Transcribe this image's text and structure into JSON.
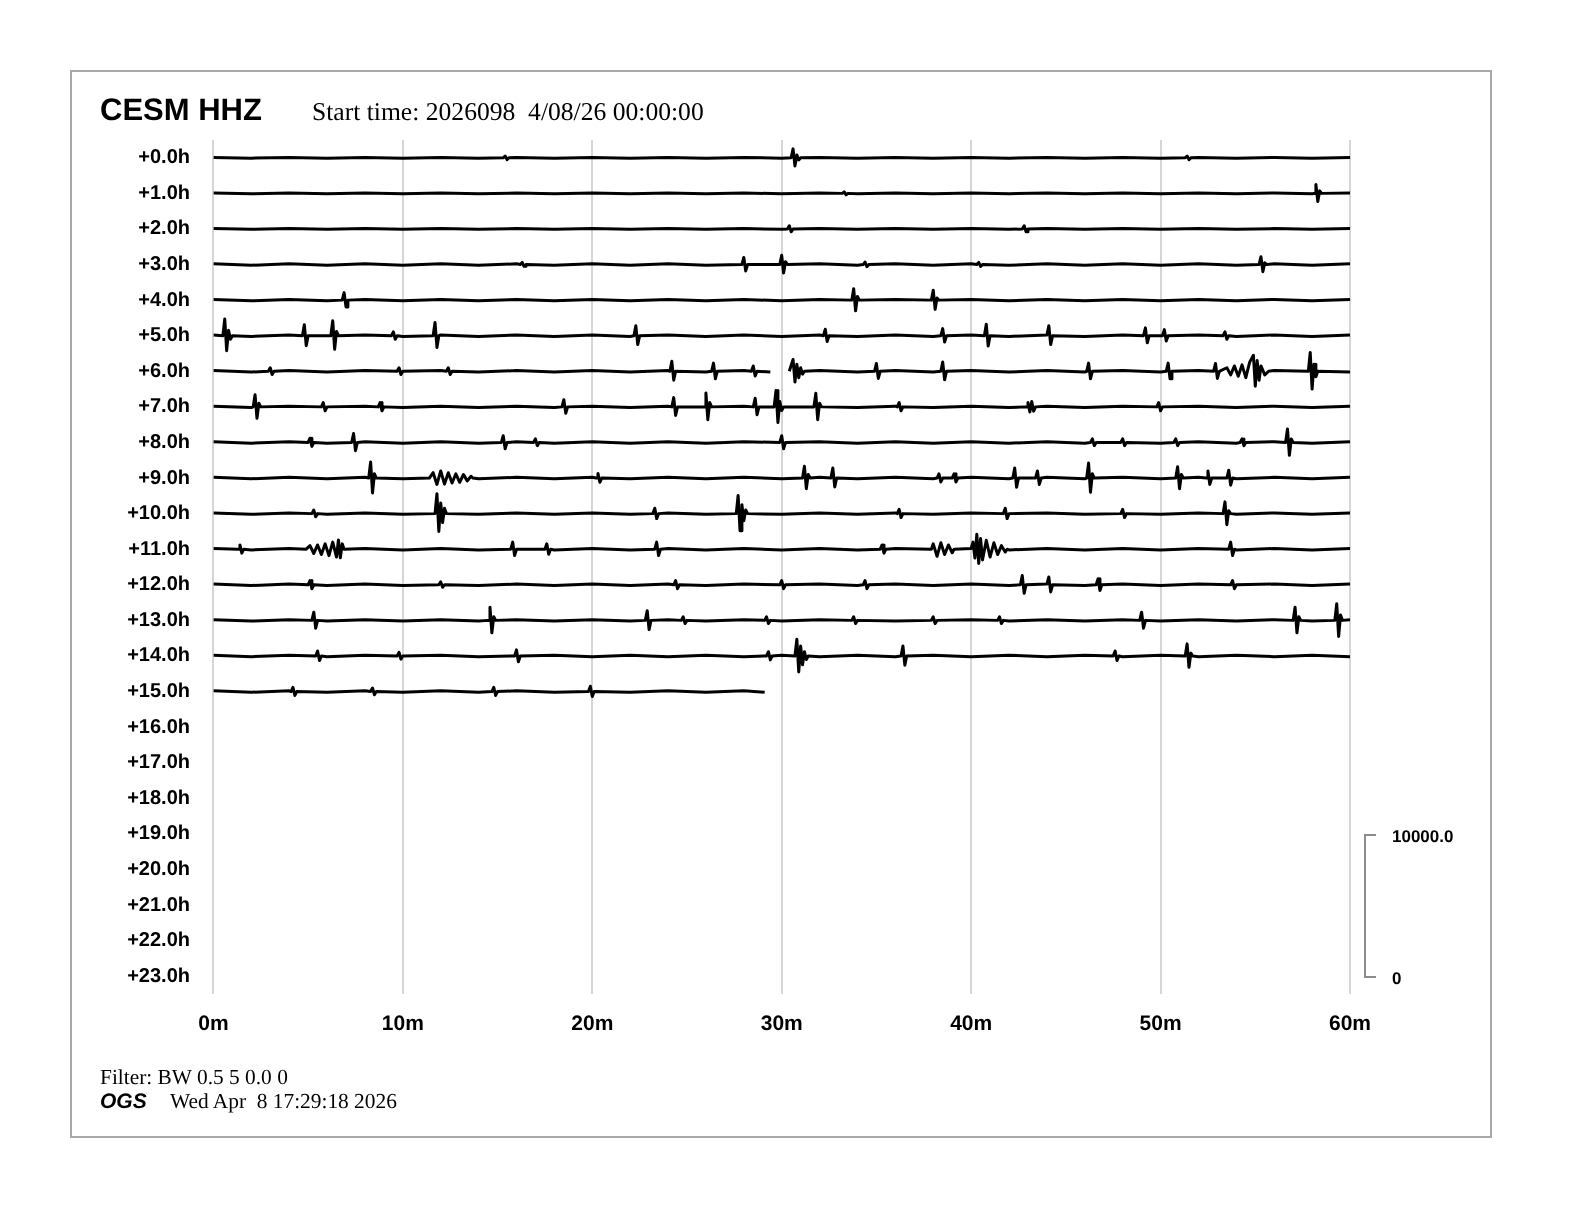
{
  "chart_data": {
    "type": "line",
    "title": "CESM HHZ",
    "subtitle": "Start time: 2026098  4/08/26 00:00:00",
    "annotations": [
      "Filter: BW 0.5 5 0.0 0",
      "OGS",
      "Wed Apr  8 17:29:18 2026",
      "10000.0",
      "0"
    ],
    "grid": "x",
    "xlim": [
      0,
      60
    ],
    "xticks": [
      {
        "value": 0,
        "label": "0m"
      },
      {
        "value": 10,
        "label": "10m"
      },
      {
        "value": 20,
        "label": "20m"
      },
      {
        "value": 30,
        "label": "30m"
      },
      {
        "value": 40,
        "label": "40m"
      },
      {
        "value": 50,
        "label": "50m"
      },
      {
        "value": 60,
        "label": "60m"
      }
    ],
    "ylim": [
      23.5,
      -0.5
    ],
    "yticks": [
      {
        "value": 0,
        "label": "+0.0h"
      },
      {
        "value": 1,
        "label": "+1.0h"
      },
      {
        "value": 2,
        "label": "+2.0h"
      },
      {
        "value": 3,
        "label": "+3.0h"
      },
      {
        "value": 4,
        "label": "+4.0h"
      },
      {
        "value": 5,
        "label": "+5.0h"
      },
      {
        "value": 6,
        "label": "+6.0h"
      },
      {
        "value": 7,
        "label": "+7.0h"
      },
      {
        "value": 8,
        "label": "+8.0h"
      },
      {
        "value": 9,
        "label": "+9.0h"
      },
      {
        "value": 10,
        "label": "+10.0h"
      },
      {
        "value": 11,
        "label": "+11.0h"
      },
      {
        "value": 12,
        "label": "+12.0h"
      },
      {
        "value": 13,
        "label": "+13.0h"
      },
      {
        "value": 14,
        "label": "+14.0h"
      },
      {
        "value": 15,
        "label": "+15.0h"
      },
      {
        "value": 16,
        "label": "+16.0h"
      },
      {
        "value": 17,
        "label": "+17.0h"
      },
      {
        "value": 18,
        "label": "+18.0h"
      },
      {
        "value": 19,
        "label": "+19.0h"
      },
      {
        "value": 20,
        "label": "+20.0h"
      },
      {
        "value": 21,
        "label": "+21.0h"
      },
      {
        "value": 22,
        "label": "+22.0h"
      },
      {
        "value": 23,
        "label": "+23.0h"
      }
    ],
    "series": [
      {
        "color": "#000000",
        "x": [
          0,
          2,
          4,
          6,
          8,
          10,
          12,
          14,
          15.3,
          15.4,
          15.5,
          15.6,
          16,
          18,
          20,
          22,
          24,
          26,
          28,
          30,
          30.5,
          30.6,
          30.7,
          30.8,
          30.9,
          31,
          32,
          34,
          36,
          38,
          40,
          42,
          44,
          46,
          48,
          50,
          51.3,
          51.4,
          51.5,
          51.6,
          52,
          54,
          56,
          58,
          60
        ],
        "values": [
          -0.01,
          0.01,
          -0.01,
          0.01,
          -0.01,
          0.01,
          -0.01,
          0.01,
          0,
          -0.05,
          0.05,
          0,
          -0.01,
          0.01,
          -0.01,
          0.01,
          -0.01,
          0.01,
          -0.01,
          0.01,
          0,
          -0.25,
          0.23,
          -0.08,
          0.06,
          0,
          -0.01,
          0.01,
          -0.01,
          0.01,
          -0.01,
          0.01,
          -0.01,
          0.01,
          -0.01,
          0.01,
          0,
          -0.05,
          0.05,
          0,
          -0.01,
          0.01,
          -0.01,
          0.01,
          -0.01
        ]
      },
      {
        "color": "#000000",
        "x": [
          0,
          2,
          4,
          6,
          8,
          10,
          12,
          14,
          16,
          18,
          20,
          22,
          24,
          26,
          28,
          30,
          32,
          33.2,
          33.3,
          33.4,
          33.5,
          34,
          36,
          38,
          40,
          42,
          44,
          46,
          48,
          50,
          52,
          54,
          56,
          58,
          58.1,
          58.2,
          58.3,
          58.4,
          58.5,
          60
        ],
        "values": [
          0.99,
          1.01,
          0.99,
          1.01,
          0.99,
          1.01,
          0.99,
          1.01,
          0.99,
          1.01,
          0.99,
          1.01,
          0.99,
          1.01,
          0.99,
          1.01,
          0.99,
          1,
          0.96,
          1.04,
          1,
          1.01,
          0.99,
          1.01,
          0.99,
          1.01,
          0.99,
          1.01,
          0.99,
          1.01,
          0.99,
          1.01,
          0.99,
          1.01,
          1,
          0.75,
          1.23,
          0.93,
          1,
          0.99
        ]
      },
      {
        "color": "#000000",
        "x": [
          0,
          2,
          4,
          6,
          8,
          10,
          12,
          14,
          16,
          18,
          20,
          22,
          24,
          26,
          28,
          30,
          30.3,
          30.4,
          30.5,
          30.6,
          32,
          34,
          36,
          38,
          40,
          42,
          42.7,
          42.8,
          42.9,
          43,
          44,
          46,
          48,
          50,
          52,
          54,
          56,
          58,
          60
        ],
        "values": [
          1.99,
          2.01,
          1.99,
          2.01,
          1.99,
          2.01,
          1.99,
          2.01,
          1.99,
          2.01,
          1.99,
          2.01,
          1.99,
          2.01,
          1.99,
          2.01,
          2,
          1.91,
          2.08,
          2,
          1.99,
          2.01,
          1.99,
          2.01,
          1.99,
          2.01,
          2,
          1.91,
          2.08,
          2,
          1.99,
          2.01,
          1.99,
          2.01,
          1.99,
          2.01,
          1.99,
          2.01,
          1.99
        ]
      },
      {
        "color": "#000000",
        "x": [
          0,
          2,
          4,
          6,
          8,
          10,
          12,
          14,
          16,
          16.2,
          16.3,
          16.4,
          16.5,
          18,
          20,
          22,
          24,
          26,
          27.9,
          28,
          28.1,
          28.2,
          29.9,
          30,
          30.1,
          30.2,
          30.3,
          32,
          34,
          34.3,
          34.4,
          34.5,
          34.6,
          36,
          38,
          40,
          40.3,
          40.4,
          40.5,
          40.6,
          42,
          44,
          46,
          48,
          50,
          52,
          54,
          55.2,
          55.3,
          55.4,
          55.5,
          55.6,
          56,
          58,
          60
        ],
        "values": [
          2.98,
          3.02,
          2.98,
          3.02,
          2.98,
          3.02,
          2.98,
          3.02,
          2.98,
          3,
          2.94,
          3.05,
          3,
          3.02,
          2.98,
          3.02,
          2.98,
          3.02,
          3,
          2.8,
          3.18,
          3,
          3,
          2.74,
          3.24,
          2.92,
          3,
          2.98,
          3.02,
          3,
          2.93,
          3.06,
          3,
          2.98,
          3.02,
          2.98,
          3,
          2.94,
          3.05,
          3,
          3.02,
          2.98,
          3.02,
          2.98,
          3.02,
          2.98,
          3.02,
          3,
          2.78,
          3.2,
          2.95,
          3,
          2.98,
          3.02,
          2.98
        ]
      },
      {
        "color": "#000000",
        "x": [
          0,
          2,
          4,
          6,
          6.8,
          6.9,
          7,
          7.1,
          8,
          10,
          12,
          14,
          16,
          18,
          20,
          22,
          24,
          26,
          28,
          30,
          32,
          33.7,
          33.8,
          33.9,
          34,
          34.1,
          36,
          37.9,
          38,
          38.1,
          38.2,
          38.3,
          40,
          42,
          44,
          46,
          48,
          50,
          52,
          54,
          56,
          58,
          60
        ],
        "values": [
          3.98,
          4.02,
          3.98,
          4.02,
          4,
          3.79,
          4.19,
          4,
          3.98,
          4.02,
          3.98,
          4.02,
          3.98,
          4.02,
          3.98,
          4.02,
          3.98,
          4.02,
          3.98,
          4.02,
          3.98,
          4,
          3.68,
          4.3,
          3.9,
          4,
          3.98,
          4,
          3.72,
          4.26,
          3.94,
          4,
          3.98,
          4.02,
          3.98,
          4.02,
          3.98,
          4.02,
          3.98,
          4.02,
          3.98,
          4.02,
          3.98
        ]
      },
      {
        "color": "#000000",
        "x": [
          0,
          0.5,
          0.6,
          0.7,
          0.8,
          0.9,
          1,
          2,
          4,
          4.7,
          4.8,
          4.9,
          5,
          6.2,
          6.3,
          6.4,
          6.5,
          6.6,
          8,
          9.4,
          9.5,
          9.6,
          9.7,
          10,
          11.6,
          11.7,
          11.8,
          11.9,
          12,
          14,
          16,
          18,
          20,
          22,
          22.2,
          22.3,
          22.4,
          22.5,
          24,
          26,
          28,
          30,
          32,
          32.2,
          32.3,
          32.4,
          32.5,
          34,
          36,
          38,
          38.4,
          38.5,
          38.6,
          38.7,
          40,
          40.7,
          40.8,
          40.9,
          41,
          42,
          44,
          44.1,
          44.2,
          44.3,
          46,
          48,
          49.1,
          49.2,
          49.3,
          49.4,
          50.1,
          50.2,
          50.3,
          50.4,
          52,
          53.3,
          53.4,
          53.5,
          53.6,
          54,
          56,
          58,
          60
        ],
        "values": [
          4.98,
          5,
          4.53,
          5.42,
          4.85,
          5.1,
          5,
          5.02,
          4.98,
          5,
          4.69,
          5.28,
          5,
          5,
          4.58,
          5.38,
          4.88,
          5,
          4.98,
          5,
          4.89,
          5.1,
          5,
          5.02,
          5,
          4.63,
          5.33,
          5,
          4.98,
          5.02,
          4.98,
          5.02,
          4.98,
          5.02,
          5,
          4.72,
          5.25,
          5,
          4.98,
          5.02,
          4.98,
          5.02,
          4.98,
          5,
          4.82,
          5.16,
          5,
          5.02,
          4.98,
          5.02,
          5,
          4.8,
          5.18,
          5,
          4.98,
          5,
          4.68,
          5.29,
          5,
          5.02,
          4.98,
          4.72,
          5.25,
          5,
          5.02,
          4.98,
          5,
          4.78,
          5.2,
          5,
          5,
          4.83,
          5.15,
          5,
          4.98,
          5,
          4.89,
          5.1,
          5,
          5.02,
          4.98,
          5.02,
          4.98
        ]
      },
      {
        "color": "#000000",
        "x": [
          0,
          2,
          2.9,
          3,
          3.1,
          3.2,
          4,
          6,
          8,
          9.7,
          9.8,
          9.9,
          10,
          12,
          12.3,
          12.4,
          12.5,
          12.6,
          14,
          16,
          18,
          20,
          22,
          24,
          24.1,
          24.2,
          24.3,
          24.4,
          26,
          26.3,
          26.4,
          26.5,
          26.6,
          28,
          28.4,
          28.5,
          28.6,
          28.7,
          29.4,
          29.9,
          30.4,
          30.6,
          30.7,
          30.8,
          30.9,
          31,
          31.1,
          31.2,
          32,
          34,
          34.9,
          35,
          35.1,
          35.2,
          36,
          38,
          38.4,
          38.5,
          38.6,
          38.7,
          40,
          42,
          44,
          46,
          46.1,
          46.2,
          46.3,
          46.4,
          48,
          50,
          50.3,
          50.4,
          50.5,
          50.6,
          52,
          52.8,
          52.9,
          53,
          53.1,
          53.5,
          53.7,
          53.9,
          54.1,
          54.3,
          54.5,
          54.7,
          54.9,
          55,
          55.1,
          55.2,
          55.3,
          55.5,
          55.7,
          56,
          57.8,
          57.9,
          58,
          58.1,
          58.2,
          58.3,
          60
        ],
        "values": [
          5.98,
          6.02,
          6,
          5.9,
          6.09,
          6,
          5.98,
          6.02,
          5.98,
          6,
          5.9,
          6.09,
          6,
          5.98,
          6,
          5.9,
          6.09,
          6,
          6.02,
          5.98,
          6.02,
          5.98,
          6.02,
          5.98,
          6,
          5.72,
          6.25,
          6,
          6.02,
          6,
          5.77,
          6.21,
          6,
          5.98,
          6,
          5.85,
          6.13,
          6,
          6.02,
          null,
          6,
          5.67,
          6.3,
          5.8,
          6.18,
          5.9,
          6.08,
          6,
          5.98,
          6.02,
          6,
          5.78,
          6.2,
          6,
          5.98,
          6.02,
          6,
          5.74,
          6.24,
          6,
          5.98,
          6.02,
          5.98,
          6.02,
          6,
          5.77,
          6.21,
          6,
          5.98,
          6.02,
          6,
          5.77,
          6.21,
          6,
          5.98,
          6,
          5.78,
          6.2,
          6,
          5.9,
          6.1,
          5.85,
          6.14,
          5.82,
          6.18,
          5.75,
          5.55,
          6.42,
          5.7,
          6.25,
          5.85,
          6.1,
          6,
          5.98,
          6,
          5.47,
          6.5,
          5.8,
          6.15,
          6,
          6.02
        ]
      },
      {
        "color": "#000000",
        "x": [
          0,
          2,
          2.1,
          2.2,
          2.3,
          2.4,
          2.5,
          4,
          5.7,
          5.8,
          5.9,
          6,
          8,
          8.7,
          8.8,
          8.9,
          9,
          10,
          12,
          14,
          16,
          18,
          18.4,
          18.5,
          18.6,
          18.7,
          20,
          22,
          24,
          24.2,
          24.3,
          24.4,
          24.5,
          25.9,
          26,
          26.1,
          26.2,
          26.3,
          28,
          28.5,
          28.6,
          28.7,
          28.8,
          29.6,
          29.7,
          29.8,
          29.9,
          30,
          30.1,
          31.7,
          31.8,
          31.9,
          32,
          32.1,
          34,
          36,
          36.1,
          36.2,
          36.3,
          36.4,
          38,
          40,
          42,
          42.9,
          43,
          43.1,
          43.2,
          43.3,
          43.4,
          44,
          46,
          48,
          49.8,
          49.9,
          50,
          50.1,
          52,
          54,
          56,
          58,
          60
        ],
        "values": [
          6.98,
          7.02,
          7,
          6.66,
          7.32,
          6.9,
          7,
          6.98,
          7,
          6.88,
          7.11,
          7,
          6.98,
          7,
          6.88,
          7.11,
          7,
          7.02,
          6.98,
          7.02,
          6.98,
          7.02,
          7,
          6.8,
          7.18,
          7,
          6.98,
          7.02,
          6.98,
          7,
          6.74,
          7.24,
          7,
          7,
          6.61,
          7.36,
          6.88,
          7,
          6.98,
          7,
          6.76,
          7.22,
          7,
          7,
          6.54,
          7.44,
          6.85,
          7.1,
          7,
          7,
          6.62,
          7.36,
          6.9,
          7,
          7.02,
          6.98,
          7,
          6.88,
          7.11,
          7,
          7.02,
          6.98,
          7.02,
          7,
          6.88,
          7.14,
          6.85,
          7.12,
          7,
          6.98,
          7.02,
          6.98,
          7,
          6.88,
          7.11,
          7,
          6.98,
          7.02,
          6.98,
          7.02,
          6.98
        ]
      },
      {
        "color": "#000000",
        "x": [
          0,
          2,
          4,
          5,
          5.1,
          5.2,
          5.3,
          6,
          7.3,
          7.4,
          7.5,
          7.6,
          8,
          10,
          12,
          14,
          15.2,
          15.3,
          15.4,
          15.5,
          16,
          16.9,
          17,
          17.1,
          17.2,
          18,
          20,
          22,
          24,
          26,
          28,
          29.9,
          30,
          30.1,
          30.2,
          32,
          34,
          36,
          38,
          40,
          42,
          44,
          46,
          46.3,
          46.4,
          46.5,
          46.6,
          47.9,
          48,
          48.1,
          48.2,
          50,
          50.7,
          50.8,
          50.9,
          51,
          52,
          54,
          54.2,
          54.3,
          54.4,
          54.5,
          56,
          56.6,
          56.7,
          56.8,
          56.9,
          57,
          58,
          60
        ],
        "values": [
          7.98,
          8.02,
          7.98,
          8,
          7.88,
          8.11,
          8,
          8.02,
          8,
          7.75,
          8.23,
          8,
          7.98,
          8.02,
          7.98,
          8.02,
          8,
          7.81,
          8.18,
          8,
          7.98,
          8,
          7.9,
          8.09,
          8,
          8.02,
          7.98,
          8.02,
          7.98,
          8.02,
          7.98,
          8,
          7.81,
          8.18,
          8,
          7.98,
          8.02,
          7.98,
          8.02,
          7.98,
          8.02,
          7.98,
          8.02,
          8,
          7.9,
          8.09,
          8,
          8,
          7.9,
          8.09,
          8,
          8.02,
          8,
          7.9,
          8.09,
          8,
          7.98,
          8.02,
          8,
          7.9,
          8.09,
          8,
          7.98,
          8,
          7.62,
          8.36,
          7.9,
          8,
          8.02,
          7.98
        ]
      },
      {
        "color": "#000000",
        "x": [
          0,
          2,
          4,
          6,
          8,
          8.2,
          8.3,
          8.4,
          8.5,
          8.6,
          10,
          11.4,
          11.6,
          11.8,
          12,
          12.2,
          12.4,
          12.6,
          12.8,
          13,
          13.2,
          13.4,
          13.6,
          13.7,
          14,
          16,
          18,
          20,
          20.2,
          20.3,
          20.4,
          20.5,
          22,
          24,
          26,
          28,
          30,
          31.1,
          31.2,
          31.3,
          31.4,
          31.5,
          32,
          32.6,
          32.7,
          32.8,
          32.9,
          34,
          36,
          38,
          38.2,
          38.3,
          38.4,
          38.5,
          39,
          39.1,
          39.2,
          39.3,
          40,
          42,
          42.2,
          42.3,
          42.4,
          42.5,
          43.4,
          43.5,
          43.6,
          43.7,
          44,
          46,
          46.1,
          46.2,
          46.3,
          46.4,
          46.5,
          48,
          50,
          50.8,
          50.9,
          51,
          51.1,
          51.2,
          52,
          52.4,
          52.5,
          52.6,
          52.7,
          53.5,
          53.6,
          53.7,
          53.8,
          54,
          56,
          58,
          60
        ],
        "values": [
          8.98,
          9.02,
          8.98,
          9.02,
          8.98,
          9,
          8.55,
          9.42,
          8.88,
          9,
          9.02,
          9,
          8.85,
          9.18,
          8.8,
          9.17,
          8.85,
          9.14,
          8.88,
          9.12,
          8.9,
          9.08,
          8.95,
          9,
          9.02,
          8.98,
          9.02,
          8.98,
          9,
          8.87,
          9.12,
          9,
          9.02,
          8.98,
          9.02,
          8.98,
          9.02,
          9,
          8.67,
          9.3,
          8.9,
          9,
          8.98,
          9,
          8.72,
          9.25,
          9,
          9.02,
          8.98,
          9.02,
          9,
          8.88,
          9.11,
          9,
          9,
          8.88,
          9.11,
          9,
          8.98,
          9.02,
          9,
          8.72,
          9.26,
          9,
          9,
          8.8,
          9.18,
          9,
          8.98,
          9.02,
          9,
          8.58,
          9.4,
          8.88,
          9,
          8.98,
          9.02,
          9,
          8.68,
          9.3,
          8.9,
          9,
          8.98,
          9,
          8.8,
          9.18,
          9,
          9,
          8.78,
          9.2,
          9,
          9.02,
          8.98,
          9.02,
          8.98
        ]
      },
      {
        "color": "#000000",
        "x": [
          0,
          2,
          4,
          5.2,
          5.3,
          5.4,
          5.5,
          6,
          8,
          10,
          11.7,
          11.8,
          11.9,
          12,
          12.1,
          12.2,
          12.3,
          14,
          16,
          18,
          20,
          22,
          23.2,
          23.3,
          23.4,
          23.5,
          24,
          26,
          27.6,
          27.7,
          27.8,
          27.9,
          28,
          28.1,
          28.2,
          30,
          32,
          34,
          36,
          36.1,
          36.2,
          36.3,
          36.4,
          38,
          40,
          41.7,
          41.8,
          41.9,
          42,
          44,
          46,
          47.9,
          48,
          48.1,
          48.2,
          50,
          52,
          53.3,
          53.4,
          53.5,
          53.6,
          53.7,
          54,
          56,
          58,
          60
        ],
        "values": [
          9.98,
          10.02,
          9.98,
          10,
          9.9,
          10.09,
          10,
          10.02,
          9.98,
          10.02,
          10,
          9.44,
          10.5,
          9.7,
          10.25,
          9.85,
          10,
          10.02,
          9.98,
          10.02,
          9.98,
          10.02,
          10,
          9.85,
          10.14,
          10,
          9.98,
          10.02,
          10,
          9.49,
          10.48,
          9.75,
          10.2,
          9.9,
          10,
          10.02,
          9.98,
          10.02,
          9.98,
          10,
          9.88,
          10.11,
          10,
          10.02,
          9.98,
          10,
          9.85,
          10.14,
          10,
          9.98,
          10.02,
          10,
          9.88,
          10.11,
          10,
          10.02,
          9.98,
          10,
          9.67,
          10.31,
          9.92,
          10,
          10.02,
          9.98,
          10.02,
          9.98
        ]
      },
      {
        "color": "#000000",
        "x": [
          0,
          1.3,
          1.4,
          1.5,
          1.6,
          2,
          4,
          4.9,
          5.1,
          5.3,
          5.5,
          5.7,
          5.9,
          6.1,
          6.3,
          6.5,
          6.6,
          6.7,
          6.8,
          6.9,
          8,
          10,
          12,
          14,
          15.7,
          15.8,
          15.9,
          16,
          17.5,
          17.6,
          17.7,
          17.8,
          18,
          20,
          22,
          23.3,
          23.4,
          23.5,
          23.6,
          24,
          26,
          28,
          30,
          32,
          34,
          35.2,
          35.3,
          35.4,
          35.5,
          36,
          37.9,
          38,
          38.2,
          38.4,
          38.6,
          38.8,
          39,
          39.1,
          40,
          40.1,
          40.2,
          40.3,
          40.4,
          40.5,
          40.6,
          40.8,
          41,
          41.2,
          41.4,
          41.6,
          41.8,
          41.9,
          42,
          44,
          46,
          48,
          50,
          52,
          53.6,
          53.7,
          53.8,
          53.9,
          54,
          56,
          58,
          60
        ],
        "values": [
          10.98,
          11,
          10.88,
          11.11,
          11,
          11.02,
          10.98,
          11,
          10.9,
          11.12,
          10.88,
          11.15,
          10.85,
          11.18,
          10.8,
          11.22,
          10.74,
          11.24,
          10.85,
          11,
          10.98,
          11.02,
          10.98,
          11.02,
          11,
          10.8,
          11.18,
          11,
          11,
          10.85,
          11.14,
          11,
          11.02,
          10.98,
          11.02,
          11,
          10.8,
          11.18,
          11,
          10.98,
          11.02,
          10.98,
          11.02,
          10.98,
          11.02,
          11,
          10.88,
          11.11,
          11,
          10.98,
          11,
          10.85,
          11.2,
          10.82,
          11.15,
          10.88,
          11.1,
          11,
          10.98,
          10.8,
          11.25,
          10.58,
          11.4,
          10.7,
          11.3,
          10.75,
          11.22,
          10.82,
          11.15,
          10.9,
          11.08,
          11,
          11.02,
          10.98,
          11.02,
          10.98,
          11.02,
          10.98,
          11,
          10.8,
          11.18,
          11,
          11.02,
          10.98,
          11.02,
          10.98
        ]
      },
      {
        "color": "#000000",
        "x": [
          0,
          2,
          4,
          5,
          5.1,
          5.2,
          5.3,
          6,
          8,
          10,
          11.9,
          12,
          12.1,
          12.2,
          14,
          16,
          18,
          20,
          22,
          24,
          24.3,
          24.4,
          24.5,
          24.6,
          26,
          28,
          29.9,
          30,
          30.1,
          30.2,
          32,
          34,
          34.3,
          34.4,
          34.5,
          34.6,
          36,
          38,
          40,
          42,
          42.6,
          42.7,
          42.8,
          42.9,
          44,
          44.1,
          44.2,
          44.3,
          46,
          46.6,
          46.7,
          46.8,
          46.9,
          48,
          50,
          52,
          53.7,
          53.8,
          53.9,
          54,
          56,
          58,
          60
        ],
        "values": [
          11.98,
          12.02,
          11.98,
          12,
          11.88,
          12.11,
          12,
          12.02,
          11.98,
          12.02,
          12,
          11.92,
          12.07,
          12,
          12.02,
          11.98,
          12.02,
          11.98,
          12.02,
          11.98,
          12,
          11.88,
          12.11,
          12,
          12.02,
          11.98,
          12,
          11.88,
          12.11,
          12,
          11.98,
          12.02,
          12,
          11.88,
          12.11,
          12,
          11.98,
          12.02,
          11.98,
          12.02,
          12,
          11.74,
          12.24,
          12,
          11.98,
          11.78,
          12.2,
          12,
          12.02,
          12,
          11.83,
          12.16,
          12,
          11.98,
          12.02,
          11.98,
          12,
          11.88,
          12.11,
          12,
          11.98,
          12.02,
          11.98
        ]
      },
      {
        "color": "#000000",
        "x": [
          0,
          2,
          4,
          5.2,
          5.3,
          5.4,
          5.5,
          6,
          8,
          10,
          12,
          14,
          14.5,
          14.6,
          14.7,
          14.8,
          14.9,
          16,
          18,
          20,
          22,
          22.8,
          22.9,
          23,
          23.1,
          24,
          24.7,
          24.8,
          24.9,
          25,
          26,
          28,
          29.1,
          29.2,
          29.3,
          29.4,
          30,
          32,
          33.7,
          33.8,
          33.9,
          34,
          36,
          37.9,
          38,
          38.1,
          38.2,
          40,
          41.4,
          41.5,
          41.6,
          41.7,
          42,
          44,
          46,
          48,
          48.9,
          49,
          49.1,
          49.2,
          50,
          52,
          54,
          56,
          57,
          57.1,
          57.2,
          57.3,
          57.4,
          58,
          59.2,
          59.3,
          59.4,
          59.5,
          59.6,
          60
        ],
        "values": [
          12.98,
          13.02,
          12.98,
          13,
          12.77,
          13.22,
          13,
          13.02,
          12.98,
          13.02,
          12.98,
          13.02,
          13,
          12.63,
          13.35,
          12.9,
          13,
          12.98,
          13.02,
          12.98,
          13.02,
          13,
          12.73,
          13.26,
          13,
          12.98,
          13,
          12.9,
          13.09,
          13,
          13.02,
          12.98,
          13,
          12.9,
          13.09,
          13,
          13.02,
          12.98,
          13,
          12.9,
          13.09,
          13,
          13.02,
          13,
          12.9,
          13.09,
          13,
          12.98,
          13,
          12.9,
          13.09,
          13,
          13.02,
          12.98,
          13.02,
          12.98,
          13,
          12.77,
          13.22,
          13,
          13.02,
          12.98,
          13.02,
          12.98,
          13,
          12.63,
          13.35,
          12.9,
          13,
          13.02,
          13,
          12.53,
          13.45,
          12.85,
          13,
          12.98
        ]
      },
      {
        "color": "#000000",
        "x": [
          0,
          2,
          4,
          5.4,
          5.5,
          5.6,
          5.7,
          6,
          8,
          9.7,
          9.8,
          9.9,
          10,
          12,
          14,
          15.9,
          16,
          16.1,
          16.2,
          18,
          20,
          22,
          24,
          26,
          28,
          29.2,
          29.3,
          29.4,
          29.5,
          30,
          30.7,
          30.8,
          30.9,
          31,
          31.1,
          31.2,
          31.3,
          31.4,
          32,
          34,
          36,
          36.3,
          36.4,
          36.5,
          36.6,
          38,
          40,
          42,
          44,
          46,
          47.5,
          47.6,
          47.7,
          47.8,
          48,
          50,
          51.3,
          51.4,
          51.5,
          51.6,
          51.7,
          52,
          54,
          56,
          58,
          60
        ],
        "values": [
          13.98,
          14.02,
          13.98,
          14,
          13.86,
          14.13,
          14,
          14.02,
          13.98,
          14,
          13.9,
          14.09,
          14,
          13.98,
          14.02,
          14,
          13.83,
          14.16,
          14,
          13.98,
          14.02,
          13.98,
          14.02,
          13.98,
          14.02,
          14,
          13.88,
          14.11,
          14,
          13.98,
          14,
          13.53,
          14.45,
          13.72,
          14.25,
          13.88,
          14.1,
          14,
          14.02,
          13.98,
          14.02,
          14,
          13.72,
          14.26,
          14,
          13.98,
          14.02,
          13.98,
          14.02,
          13.98,
          14,
          13.86,
          14.13,
          14,
          14.02,
          13.98,
          14,
          13.66,
          14.32,
          13.92,
          14,
          14.02,
          13.98,
          14.02,
          13.98,
          14.02
        ]
      },
      {
        "color": "#000000",
        "x": [
          0,
          2,
          4,
          4.1,
          4.2,
          4.3,
          4.4,
          6,
          8,
          8.3,
          8.4,
          8.5,
          8.6,
          10,
          12,
          14,
          14.7,
          14.8,
          14.9,
          15,
          16,
          18,
          19.8,
          19.9,
          20,
          20.1,
          22,
          24,
          26,
          28,
          29.1
        ],
        "values": [
          14.98,
          15.02,
          14.98,
          15,
          14.88,
          15.11,
          15,
          15.02,
          14.98,
          15,
          14.9,
          15.09,
          15,
          15.02,
          14.98,
          15.02,
          15,
          14.88,
          15.11,
          15,
          14.98,
          15.02,
          15,
          14.85,
          15.14,
          15,
          15.02,
          14.98,
          15.02,
          14.98,
          15.02
        ]
      }
    ]
  }
}
